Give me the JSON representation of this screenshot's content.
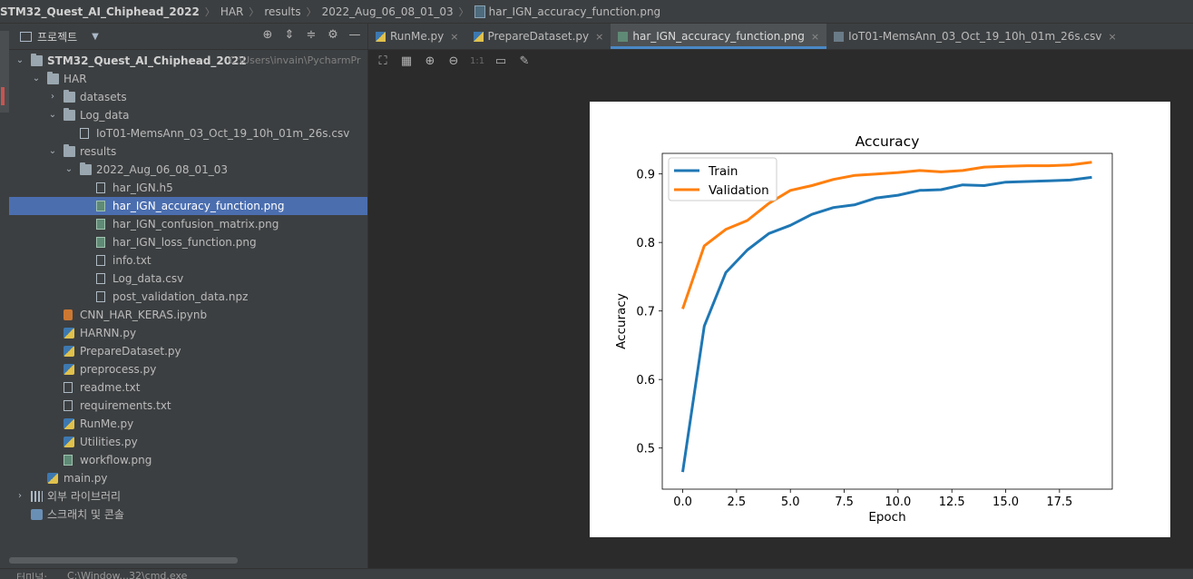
{
  "breadcrumb": [
    "STM32_Quest_AI_Chiphead_2022",
    "HAR",
    "results",
    "2022_Aug_06_08_01_03",
    "har_IGN_accuracy_function.png"
  ],
  "project_panel": {
    "title": "프로젝트",
    "tools": [
      "target-icon",
      "expand-all-icon",
      "collapse-all-icon",
      "gear-icon",
      "minimize-icon"
    ]
  },
  "tree": [
    {
      "depth": 0,
      "arrow": "down",
      "icon": "folder",
      "label": "STM32_Quest_AI_Chiphead_2022",
      "bold": true,
      "path": "C:\\Users\\invain\\PycharmPr"
    },
    {
      "depth": 1,
      "arrow": "down",
      "icon": "folder",
      "label": "HAR"
    },
    {
      "depth": 2,
      "arrow": "right",
      "icon": "folder",
      "label": "datasets"
    },
    {
      "depth": 2,
      "arrow": "down",
      "icon": "folder",
      "label": "Log_data"
    },
    {
      "depth": 3,
      "arrow": "",
      "icon": "file",
      "label": "IoT01-MemsAnn_03_Oct_19_10h_01m_26s.csv"
    },
    {
      "depth": 2,
      "arrow": "down",
      "icon": "folder",
      "label": "results"
    },
    {
      "depth": 3,
      "arrow": "down",
      "icon": "folder",
      "label": "2022_Aug_06_08_01_03"
    },
    {
      "depth": 4,
      "arrow": "",
      "icon": "file",
      "label": "har_IGN.h5"
    },
    {
      "depth": 4,
      "arrow": "",
      "icon": "img",
      "label": "har_IGN_accuracy_function.png",
      "selected": true
    },
    {
      "depth": 4,
      "arrow": "",
      "icon": "img",
      "label": "har_IGN_confusion_matrix.png"
    },
    {
      "depth": 4,
      "arrow": "",
      "icon": "img",
      "label": "har_IGN_loss_function.png"
    },
    {
      "depth": 4,
      "arrow": "",
      "icon": "file",
      "label": "info.txt"
    },
    {
      "depth": 4,
      "arrow": "",
      "icon": "file",
      "label": "Log_data.csv"
    },
    {
      "depth": 4,
      "arrow": "",
      "icon": "file",
      "label": "post_validation_data.npz"
    },
    {
      "depth": 2,
      "arrow": "",
      "icon": "nb",
      "label": "CNN_HAR_KERAS.ipynb"
    },
    {
      "depth": 2,
      "arrow": "",
      "icon": "py",
      "label": "HARNN.py"
    },
    {
      "depth": 2,
      "arrow": "",
      "icon": "py",
      "label": "PrepareDataset.py"
    },
    {
      "depth": 2,
      "arrow": "",
      "icon": "py",
      "label": "preprocess.py"
    },
    {
      "depth": 2,
      "arrow": "",
      "icon": "file",
      "label": "readme.txt"
    },
    {
      "depth": 2,
      "arrow": "",
      "icon": "file",
      "label": "requirements.txt"
    },
    {
      "depth": 2,
      "arrow": "",
      "icon": "py",
      "label": "RunMe.py"
    },
    {
      "depth": 2,
      "arrow": "",
      "icon": "py",
      "label": "Utilities.py"
    },
    {
      "depth": 2,
      "arrow": "",
      "icon": "img",
      "label": "workflow.png"
    },
    {
      "depth": 1,
      "arrow": "",
      "icon": "py",
      "label": "main.py"
    },
    {
      "depth": 0,
      "arrow": "right",
      "icon": "lib",
      "label": "외부 라이브러리"
    },
    {
      "depth": 0,
      "arrow": "",
      "icon": "scratch",
      "label": "스크래치 및 콘솔"
    }
  ],
  "tabs": [
    {
      "label": "RunMe.py",
      "icon": "py",
      "close": "×"
    },
    {
      "label": "PrepareDataset.py",
      "icon": "py",
      "close": "×"
    },
    {
      "label": "har_IGN_accuracy_function.png",
      "icon": "img",
      "close": "×",
      "active": true
    },
    {
      "label": "IoT01-MemsAnn_03_Oct_19_10h_01m_26s.csv",
      "icon": "file",
      "close": "×"
    }
  ],
  "image_toolbar": [
    "fit-icon",
    "grid-icon",
    "zoom-in-icon",
    "zoom-out-icon",
    "actual-size-label",
    "background-icon",
    "color-picker-icon"
  ],
  "image_toolbar_text": {
    "actual_size": "1:1"
  },
  "bottom_bar": {
    "left": "터미널:",
    "right": "C:\\Window...32\\cmd.exe"
  },
  "chart_data": {
    "type": "line",
    "title": "Accuracy",
    "xlabel": "Epoch",
    "ylabel": "Accuracy",
    "xlim": [
      -0.95,
      19.95
    ],
    "ylim": [
      0.44,
      0.93
    ],
    "xticks": [
      "0.0",
      "2.5",
      "5.0",
      "7.5",
      "10.0",
      "12.5",
      "15.0",
      "17.5"
    ],
    "xtick_values": [
      0,
      2.5,
      5,
      7.5,
      10,
      12.5,
      15,
      17.5
    ],
    "yticks": [
      "0.5",
      "0.6",
      "0.7",
      "0.8",
      "0.9"
    ],
    "ytick_values": [
      0.5,
      0.6,
      0.7,
      0.8,
      0.9
    ],
    "legend_position": "top-left",
    "grid": false,
    "x": [
      0,
      1,
      2,
      3,
      4,
      5,
      6,
      7,
      8,
      9,
      10,
      11,
      12,
      13,
      14,
      15,
      16,
      17,
      18,
      19
    ],
    "series": [
      {
        "name": "Train",
        "color": "#1f77b4",
        "values": [
          0.465,
          0.678,
          0.756,
          0.789,
          0.813,
          0.825,
          0.841,
          0.851,
          0.855,
          0.865,
          0.869,
          0.876,
          0.877,
          0.884,
          0.883,
          0.888,
          0.889,
          0.89,
          0.891,
          0.895
        ]
      },
      {
        "name": "Validation",
        "color": "#ff7f0e",
        "values": [
          0.703,
          0.795,
          0.819,
          0.832,
          0.857,
          0.876,
          0.883,
          0.892,
          0.898,
          0.9,
          0.902,
          0.905,
          0.903,
          0.905,
          0.91,
          0.911,
          0.912,
          0.912,
          0.913,
          0.917
        ]
      }
    ]
  }
}
